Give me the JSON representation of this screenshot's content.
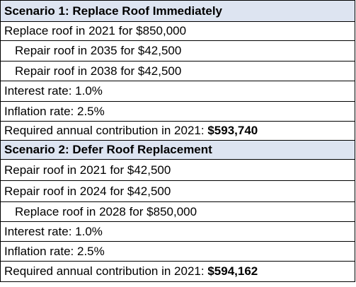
{
  "scenarios": [
    {
      "header": "Scenario 1: Replace Roof Immediately",
      "rows": [
        "Replace roof in 2021 for $850,000",
        "Repair roof in 2035 for $42,500",
        "Repair roof in 2038 for $42,500",
        "Interest rate: 1.0%",
        "Inflation rate: 2.5%"
      ],
      "contribution_label": "Required annual contribution in 2021: ",
      "contribution_value": "$593,740"
    },
    {
      "header": "Scenario 2: Defer Roof Replacement",
      "rows": [
        "Repair roof in 2021 for $42,500",
        "Repair roof in 2024 for $42,500",
        "Replace roof in 2028 for $850,000",
        "Interest rate: 1.0%",
        "Inflation rate: 2.5%"
      ],
      "contribution_label": "Required annual contribution in 2021: ",
      "contribution_value": "$594,162"
    }
  ],
  "colors": {
    "header_background": "#dde4f1",
    "border": "#000000"
  }
}
